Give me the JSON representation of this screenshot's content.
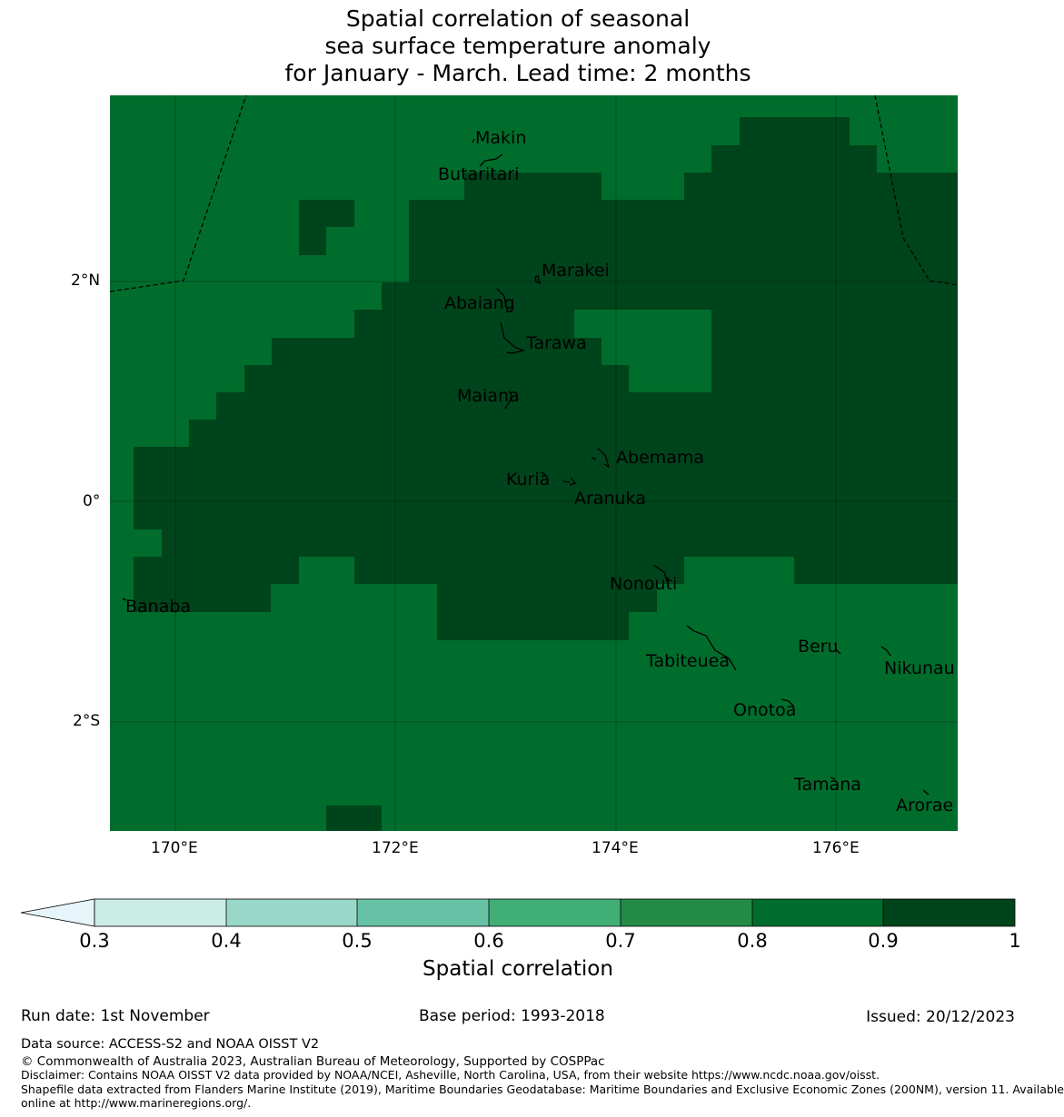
{
  "title": {
    "line1": "Spatial correlation of seasonal",
    "line2": "sea surface temperature anomaly",
    "line3": "for January - March. Lead time: 2 months"
  },
  "axes": {
    "lon_ticks": [
      "170°E",
      "172°E",
      "174°E",
      "176°E"
    ],
    "lat_ticks": [
      "2°N",
      "0°",
      "2°S"
    ]
  },
  "islands": [
    {
      "name": "Makin"
    },
    {
      "name": "Butaritari"
    },
    {
      "name": "Marakei"
    },
    {
      "name": "Abaiang"
    },
    {
      "name": "Tarawa"
    },
    {
      "name": "Maiana"
    },
    {
      "name": "Abemama"
    },
    {
      "name": "Kuria"
    },
    {
      "name": "Aranuka"
    },
    {
      "name": "Nonouti"
    },
    {
      "name": "Banaba"
    },
    {
      "name": "Beru"
    },
    {
      "name": "Nikunau"
    },
    {
      "name": "Tabiteuea"
    },
    {
      "name": "Onotoa"
    },
    {
      "name": "Tamana"
    },
    {
      "name": "Arorae"
    }
  ],
  "colorbar": {
    "ticks": [
      "0.3",
      "0.4",
      "0.5",
      "0.6",
      "0.7",
      "0.8",
      "0.9",
      "1"
    ],
    "colors": [
      "#ccece6",
      "#99d8c9",
      "#66c2a4",
      "#41ae76",
      "#238b45",
      "#006d2c",
      "#00441b"
    ],
    "under_color": "#e5f5f9",
    "label": "Spatial correlation"
  },
  "map_colors": {
    "band_08_09": "#006d2c",
    "band_09_10": "#00441b"
  },
  "footer": {
    "run_date": "Run date: 1st November",
    "base_period": "Base period: 1993-2018",
    "issued": "Issued: 20/12/2023",
    "data_source": "Data source: ACCESS-S2 and NOAA OISST V2",
    "copyright": "© Commonwealth of Australia 2023, Australian Bureau of Meteorology, Supported by COSPPac",
    "disclaimer": "Disclaimer: Contains NOAA OISST V2 data provided by NOAA/NCEI, Asheville, North Carolina, USA, from their website https://www.ncdc.noaa.gov/oisst.",
    "shapefile_1": "Shapefile data extracted from Flanders Marine Institute (2019), Maritime Boundaries Geodatabase: Maritime Boundaries and Exclusive Economic Zones (200NM), version 11. Available",
    "shapefile_2": "online at http://www.marineregions.org/."
  }
}
